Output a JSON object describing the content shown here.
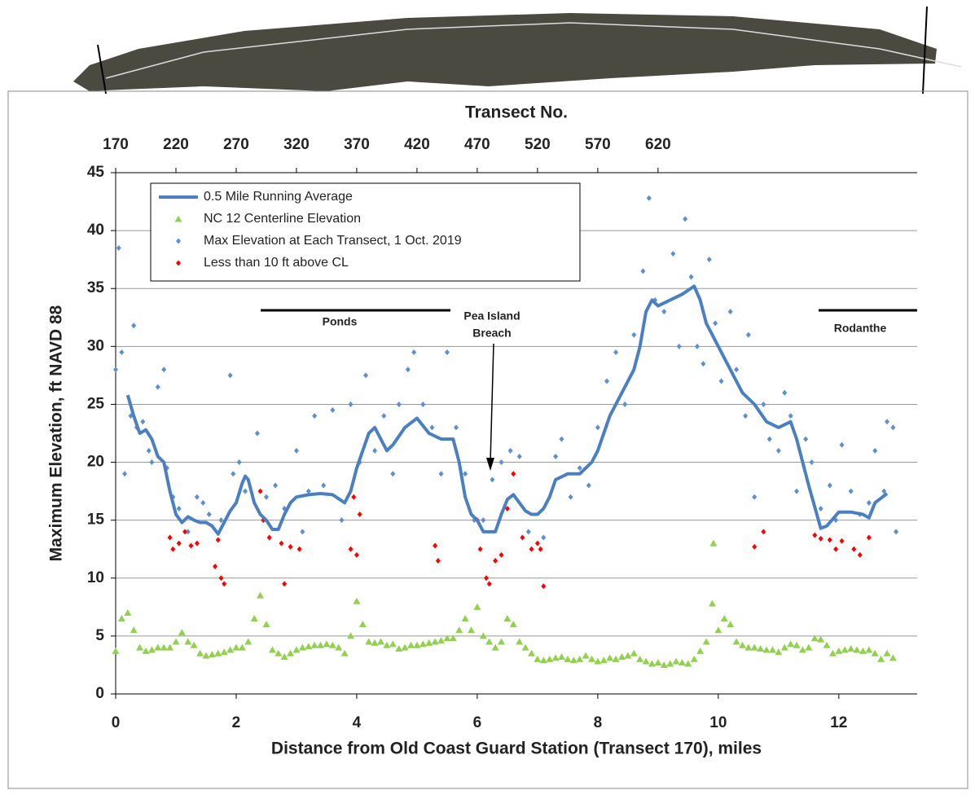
{
  "chart_data": {
    "type": "scatter",
    "x2_label": "Transect No.",
    "y_label": "Maximum Elevation, ft NAVD 88",
    "x_label": "Distance from Old Coast Guard Station (Transect 170), miles",
    "annotations": [
      "Ponds",
      "Pea Island",
      "Breach",
      "Rodanthe"
    ],
    "xlim": [
      0,
      13.3
    ],
    "xticks": [
      0,
      2,
      4,
      6,
      8,
      10,
      12
    ],
    "x2lim": [
      170,
      835
    ],
    "x2ticks": [
      170,
      220,
      270,
      320,
      370,
      420,
      470,
      520,
      570,
      620
    ],
    "ylim": [
      0,
      45
    ],
    "yticks": [
      0,
      5,
      10,
      15,
      20,
      25,
      30,
      35,
      40,
      45
    ],
    "grid": true,
    "series": [
      {
        "name": "0.5 Mile Running Average",
        "type": "line",
        "color": "#4a7fc1",
        "x": [
          0.2,
          0.3,
          0.4,
          0.5,
          0.6,
          0.7,
          0.8,
          0.9,
          1.0,
          1.1,
          1.2,
          1.3,
          1.4,
          1.5,
          1.6,
          1.7,
          1.8,
          1.9,
          2.0,
          2.1,
          2.15,
          2.2,
          2.3,
          2.4,
          2.5,
          2.6,
          2.7,
          2.8,
          2.9,
          3.0,
          3.2,
          3.4,
          3.6,
          3.8,
          3.9,
          4.0,
          4.2,
          4.3,
          4.4,
          4.5,
          4.6,
          4.8,
          5.0,
          5.2,
          5.4,
          5.6,
          5.7,
          5.8,
          5.9,
          6.0,
          6.1,
          6.3,
          6.4,
          6.5,
          6.6,
          6.7,
          6.8,
          6.9,
          7.0,
          7.1,
          7.2,
          7.3,
          7.5,
          7.7,
          7.9,
          8.0,
          8.2,
          8.4,
          8.6,
          8.7,
          8.8,
          8.9,
          9.0,
          9.2,
          9.4,
          9.6,
          9.7,
          9.8,
          10.0,
          10.2,
          10.4,
          10.6,
          10.8,
          11.0,
          11.2,
          11.3,
          11.5,
          11.7,
          11.8,
          12.0,
          12.2,
          12.4,
          12.5,
          12.6,
          12.8
        ],
        "values": [
          25.8,
          24,
          22.5,
          22.8,
          22,
          20.5,
          20,
          17.5,
          15.5,
          14.8,
          15.3,
          15,
          14.8,
          14.8,
          14.5,
          13.8,
          14.8,
          15.8,
          16.5,
          18.2,
          18.8,
          18.5,
          16.5,
          15.5,
          15,
          14.2,
          14.2,
          15.5,
          16.5,
          17,
          17.2,
          17.3,
          17.2,
          16.5,
          17.5,
          19.5,
          22.5,
          23,
          22,
          21,
          21.5,
          23,
          23.8,
          22.5,
          22,
          22,
          20,
          17,
          15.5,
          15,
          14,
          14,
          15.5,
          16.8,
          17.2,
          16.5,
          15.8,
          15.5,
          15.5,
          16,
          17,
          18.5,
          19,
          19,
          20,
          21,
          24,
          26,
          28,
          30,
          33,
          34,
          33.5,
          34,
          34.5,
          35.2,
          34,
          32,
          30,
          28,
          26,
          25,
          23.5,
          23,
          23.5,
          22,
          18,
          14.3,
          14.5,
          15.7,
          15.7,
          15.5,
          15.2,
          16.5,
          17.3
        ]
      },
      {
        "name": "NC 12 Centerline Elevation",
        "type": "scatter",
        "marker": "triangle",
        "color": "#92d050",
        "x": [
          0.0,
          0.1,
          0.2,
          0.3,
          0.4,
          0.5,
          0.6,
          0.7,
          0.8,
          0.9,
          1.0,
          1.1,
          1.2,
          1.3,
          1.4,
          1.5,
          1.6,
          1.7,
          1.8,
          1.9,
          2.0,
          2.1,
          2.2,
          2.3,
          2.4,
          2.5,
          2.6,
          2.7,
          2.8,
          2.9,
          3.0,
          3.1,
          3.2,
          3.3,
          3.4,
          3.5,
          3.6,
          3.7,
          3.8,
          3.9,
          4.0,
          4.1,
          4.2,
          4.3,
          4.4,
          4.5,
          4.6,
          4.7,
          4.8,
          4.9,
          5.0,
          5.1,
          5.2,
          5.3,
          5.4,
          5.5,
          5.6,
          5.7,
          5.8,
          5.9,
          6.0,
          6.1,
          6.2,
          6.3,
          6.4,
          6.5,
          6.6,
          6.7,
          6.8,
          6.9,
          7.0,
          7.1,
          7.2,
          7.3,
          7.4,
          7.5,
          7.6,
          7.7,
          7.8,
          7.9,
          8.0,
          8.1,
          8.2,
          8.3,
          8.4,
          8.5,
          8.6,
          8.7,
          8.8,
          8.9,
          9.0,
          9.1,
          9.2,
          9.3,
          9.4,
          9.5,
          9.6,
          9.7,
          9.8,
          9.9,
          10.0,
          10.1,
          10.2,
          10.3,
          10.4,
          10.5,
          10.6,
          10.7,
          10.8,
          10.9,
          11.0,
          11.1,
          11.2,
          11.3,
          11.4,
          11.5,
          11.6,
          11.7,
          11.8,
          11.9,
          12.0,
          12.1,
          12.2,
          12.3,
          12.4,
          12.5,
          12.6,
          12.7,
          12.8,
          12.9,
          9.92
        ],
        "values": [
          3.7,
          6.5,
          7,
          5.5,
          4,
          3.7,
          3.8,
          4,
          4,
          4,
          4.5,
          5.3,
          4.5,
          4.2,
          3.5,
          3.3,
          3.4,
          3.5,
          3.6,
          3.8,
          4,
          4,
          4.5,
          6.5,
          8.5,
          6,
          3.8,
          3.5,
          3.2,
          3.5,
          3.8,
          4,
          4.1,
          4.2,
          4.2,
          4.3,
          4.2,
          4,
          3.5,
          5,
          8,
          6,
          4.5,
          4.4,
          4.5,
          4.2,
          4.3,
          3.9,
          4,
          4.2,
          4.2,
          4.3,
          4.4,
          4.5,
          4.6,
          4.8,
          4.8,
          5.5,
          6.5,
          5.5,
          7.5,
          5,
          4.5,
          4,
          4.5,
          6.5,
          6,
          4.5,
          4,
          3.5,
          3,
          2.9,
          3,
          3.1,
          3.2,
          3,
          2.9,
          3,
          3.3,
          3,
          2.8,
          2.9,
          3.1,
          3,
          3.2,
          3.3,
          3.5,
          3,
          2.8,
          2.6,
          2.7,
          2.5,
          2.6,
          2.8,
          2.7,
          2.6,
          3,
          3.7,
          4.5,
          7.8,
          5.5,
          6.5,
          6,
          4.5,
          4.2,
          4,
          4,
          3.9,
          3.8,
          3.8,
          3.6,
          4,
          4.3,
          4.2,
          3.8,
          4,
          4.8,
          4.7,
          4.2,
          3.5,
          3.7,
          3.8,
          3.9,
          3.8,
          3.7,
          3.8,
          3.5,
          3,
          3.5,
          3.1,
          13
        ]
      },
      {
        "name": "Max Elevation at Each Transect, 1 Oct. 2019",
        "type": "scatter",
        "marker": "diamond",
        "color": "#5b8fd0",
        "x": [
          0.0,
          0.05,
          0.1,
          0.15,
          0.25,
          0.3,
          0.35,
          0.45,
          0.55,
          0.6,
          0.7,
          0.8,
          0.85,
          0.95,
          1.05,
          1.2,
          1.35,
          1.45,
          1.55,
          1.75,
          1.9,
          1.95,
          2.05,
          2.15,
          2.35,
          2.5,
          2.65,
          2.8,
          3.0,
          3.1,
          3.2,
          3.3,
          3.45,
          3.6,
          3.75,
          3.9,
          4.05,
          4.15,
          4.3,
          4.45,
          4.6,
          4.7,
          4.85,
          4.95,
          5.1,
          5.25,
          5.4,
          5.5,
          5.65,
          5.8,
          5.95,
          6.1,
          6.25,
          6.4,
          6.55,
          6.7,
          6.85,
          7.1,
          7.3,
          7.4,
          7.55,
          7.7,
          7.85,
          8.0,
          8.15,
          8.3,
          8.45,
          8.6,
          8.75,
          8.85,
          8.95,
          9.1,
          9.25,
          9.35,
          9.45,
          9.55,
          9.65,
          9.75,
          9.85,
          9.95,
          10.05,
          10.2,
          10.3,
          10.45,
          10.5,
          10.6,
          10.75,
          10.85,
          11.0,
          11.1,
          11.2,
          11.3,
          11.45,
          11.55,
          11.7,
          11.85,
          11.95,
          12.05,
          12.2,
          12.35,
          12.5,
          12.6,
          12.75,
          12.8,
          12.9,
          12.95
        ],
        "values": [
          28,
          38.5,
          29.5,
          19,
          24,
          31.8,
          23,
          23.5,
          21,
          20,
          26.5,
          28,
          19.5,
          17,
          16,
          14,
          17,
          16.5,
          15.5,
          15,
          27.5,
          19,
          20,
          17.5,
          22.5,
          17,
          18,
          16,
          21,
          14,
          17.5,
          24,
          18,
          24.5,
          15,
          25,
          20,
          27.5,
          21,
          24,
          19,
          25,
          28,
          29.5,
          25,
          23,
          19,
          29.5,
          23,
          19,
          15,
          15,
          18.5,
          20,
          21,
          20.5,
          14,
          13.5,
          20.5,
          22,
          17,
          19.5,
          18,
          23,
          27,
          29.5,
          25,
          31,
          36.5,
          42.8,
          34,
          33,
          38,
          30,
          41,
          36,
          30,
          28.5,
          37.5,
          32,
          27,
          33,
          28,
          24,
          31,
          17,
          25,
          22,
          21,
          26,
          24,
          17.5,
          22,
          20,
          16,
          18,
          15,
          21.5,
          17.5,
          15.5,
          16.5,
          21,
          17.5,
          23.5,
          23,
          14
        ]
      },
      {
        "name": "Less than 10 ft above CL",
        "type": "scatter",
        "marker": "diamond",
        "color": "#ff0000",
        "x": [
          0.9,
          0.95,
          1.05,
          1.15,
          1.25,
          1.35,
          1.65,
          1.75,
          1.8,
          1.7,
          2.4,
          2.45,
          2.55,
          2.75,
          2.8,
          2.9,
          3.05,
          3.9,
          3.95,
          4.05,
          4.0,
          5.3,
          5.35,
          6.0,
          6.05,
          6.15,
          6.2,
          6.3,
          6.4,
          6.5,
          6.6,
          6.75,
          6.9,
          7.0,
          7.1,
          7.05,
          10.6,
          10.75,
          11.6,
          11.7,
          11.85,
          11.95,
          12.05,
          12.25,
          12.35,
          12.5
        ],
        "values": [
          13.5,
          12.5,
          13,
          14,
          12.8,
          13,
          11,
          10,
          9.5,
          13.3,
          17.5,
          15,
          13.5,
          13,
          9.5,
          12.7,
          12.5,
          12.5,
          17,
          15.5,
          12,
          12.8,
          11.5,
          15,
          12.5,
          10,
          9.5,
          11.5,
          12,
          16,
          19,
          13.5,
          12.5,
          13,
          9.3,
          12.5,
          12.7,
          14,
          13.7,
          13.4,
          13.3,
          12.5,
          13.2,
          12.5,
          12,
          13.5
        ]
      }
    ]
  }
}
